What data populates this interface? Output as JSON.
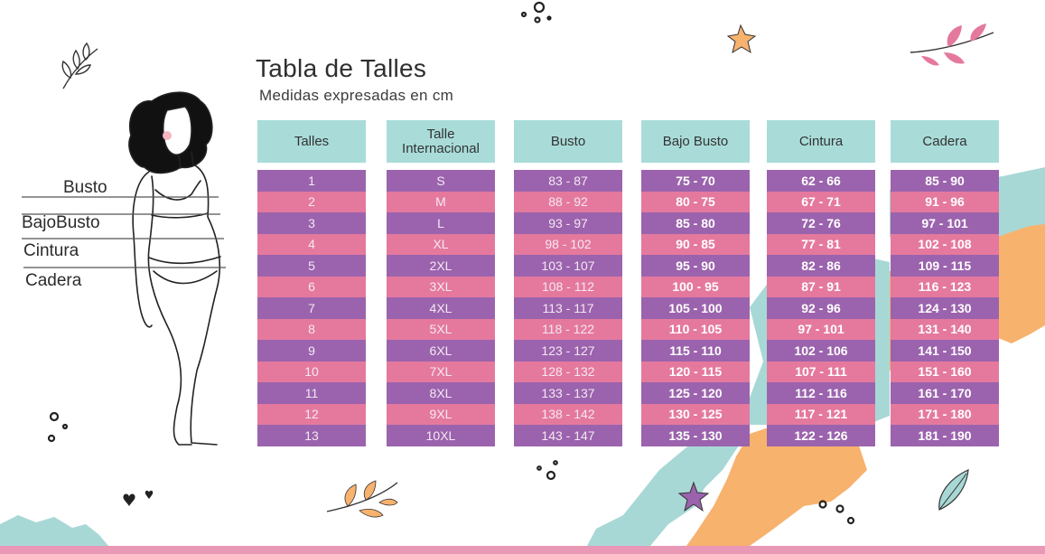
{
  "header": {
    "title": "Tabla de Talles",
    "subtitle": "Medidas expresadas en cm"
  },
  "figure_labels": [
    "Busto",
    "BajoBusto",
    "Cintura",
    "Cadera"
  ],
  "table": {
    "columns": [
      {
        "header": "Talles",
        "values": [
          "1",
          "2",
          "3",
          "4",
          "5",
          "6",
          "7",
          "8",
          "9",
          "10",
          "11",
          "12",
          "13"
        ]
      },
      {
        "header": "Talle Internacional",
        "values": [
          "S",
          "M",
          "L",
          "XL",
          "2XL",
          "3XL",
          "4XL",
          "5XL",
          "6XL",
          "7XL",
          "8XL",
          "9XL",
          "10XL"
        ]
      },
      {
        "header": "Busto",
        "values": [
          "83 - 87",
          "88 - 92",
          "93 - 97",
          "98 - 102",
          "103 - 107",
          "108 - 112",
          "113 - 117",
          "118 - 122",
          "123 - 127",
          "128 - 132",
          "133 - 137",
          "138 - 142",
          "143 - 147"
        ]
      },
      {
        "header": "Bajo Busto",
        "values": [
          "75 - 70",
          "80 - 75",
          "85 - 80",
          "90 - 85",
          "95 - 90",
          "100 - 95",
          "105 - 100",
          "110 - 105",
          "115 - 110",
          "120 - 115",
          "125 - 120",
          "130 - 125",
          "135 - 130"
        ]
      },
      {
        "header": "Cintura",
        "values": [
          "62 - 66",
          "67 - 71",
          "72 - 76",
          "77 - 81",
          "82 - 86",
          "87 - 91",
          "92 - 96",
          "97 - 101",
          "102 - 106",
          "107 - 111",
          "112 - 116",
          "117 - 121",
          "122 - 126"
        ]
      },
      {
        "header": "Cadera",
        "values": [
          "85 - 90",
          "91 - 96",
          "97 - 101",
          "102 - 108",
          "109 - 115",
          "116 - 123",
          "124 - 130",
          "131 - 140",
          "141 - 150",
          "151 - 160",
          "161 - 170",
          "171 - 180",
          "181 - 190"
        ]
      }
    ]
  },
  "colors": {
    "header_bg": "#a9dcd9",
    "row_purple": "#9b63ad",
    "row_pink": "#e5799d",
    "accent_teal": "#a8d8d6",
    "accent_orange": "#f7b26e"
  },
  "icons": [
    "woman-figure-icon",
    "leaf-branch-icon",
    "star-icon",
    "circles-icon",
    "heart-icon"
  ]
}
